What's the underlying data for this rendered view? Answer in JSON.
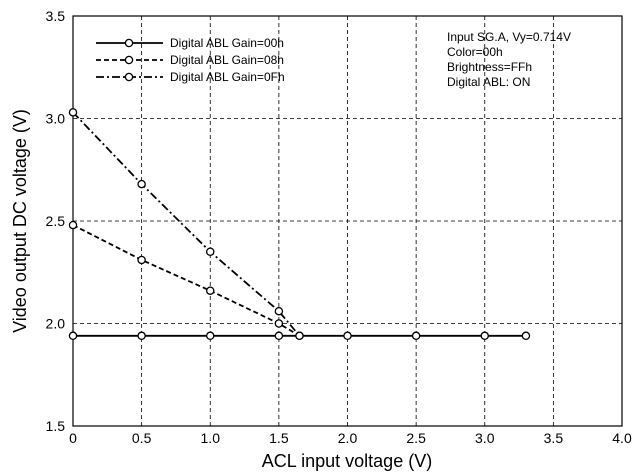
{
  "chart_data": {
    "type": "line",
    "xlabel": "ACL input voltage (V)",
    "ylabel": "Video output DC voltage (V)",
    "xlim": [
      0,
      4.0
    ],
    "ylim": [
      1.5,
      3.5
    ],
    "x_ticks": [
      "0",
      "0.5",
      "1.0",
      "1.5",
      "2.0",
      "2.5",
      "3.0",
      "3.5",
      "4.0"
    ],
    "y_ticks": [
      "1.5",
      "2.0",
      "2.5",
      "3.0",
      "3.5"
    ],
    "grid": "dashed",
    "legend_position": "top-left",
    "series": [
      {
        "name": "Digital ABL Gain=00h",
        "line_style": "solid",
        "x": [
          0,
          0.5,
          1.0,
          1.5,
          2.0,
          2.5,
          3.0,
          3.3
        ],
        "y": [
          1.94,
          1.94,
          1.94,
          1.94,
          1.94,
          1.94,
          1.94,
          1.94
        ]
      },
      {
        "name": "Digital ABL Gain=08h",
        "line_style": "dashed",
        "x": [
          0,
          0.5,
          1.0,
          1.5,
          1.65
        ],
        "y": [
          2.48,
          2.31,
          2.16,
          2.0,
          1.94
        ]
      },
      {
        "name": "Digital ABL Gain=0Fh",
        "line_style": "dash-dot",
        "x": [
          0,
          0.5,
          1.0,
          1.5,
          1.65
        ],
        "y": [
          3.03,
          2.68,
          2.35,
          2.06,
          1.94
        ]
      }
    ],
    "annotations": [
      "Input SG.A, Vy=0.714V",
      "Color=00h",
      "Brightness=FFh",
      "Digital ABL: ON"
    ]
  }
}
